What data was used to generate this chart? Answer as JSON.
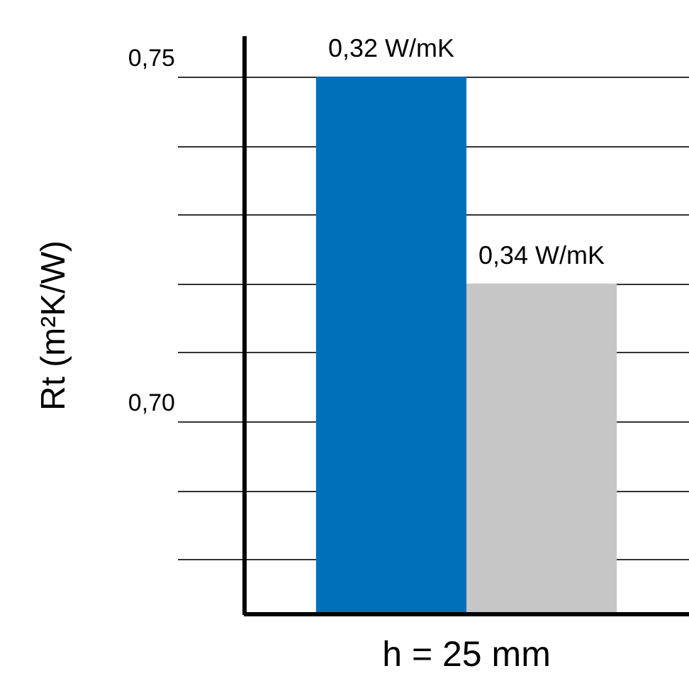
{
  "chart_data": {
    "type": "bar",
    "ylabel": "Rt (m²K/W)",
    "categories": [
      "h = 25 mm"
    ],
    "series": [
      {
        "name": "0,32 W/mK",
        "color": "#0070bb",
        "values": [
          0.75
        ]
      },
      {
        "name": "0,34 W/mK",
        "color": "#c6c6c6",
        "values": [
          0.72
        ]
      }
    ],
    "ylim": [
      0.672,
      0.756
    ],
    "yticks": [
      {
        "value": 0.68,
        "label": null
      },
      {
        "value": 0.69,
        "label": null
      },
      {
        "value": 0.7,
        "label": "0,70"
      },
      {
        "value": 0.71,
        "label": null
      },
      {
        "value": 0.72,
        "label": null
      },
      {
        "value": 0.73,
        "label": null
      },
      {
        "value": 0.74,
        "label": null
      },
      {
        "value": 0.75,
        "label": "0,75"
      }
    ],
    "grid": "y"
  }
}
